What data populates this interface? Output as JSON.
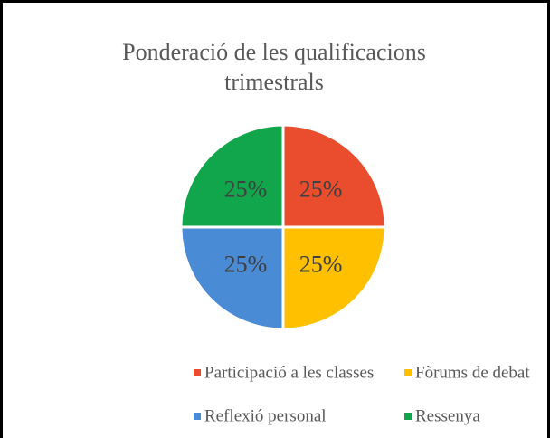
{
  "chart_data": {
    "type": "pie",
    "title": "Ponderació de les qualificacions trimestrals",
    "categories": [
      "Participació a les classes",
      "Fòrums de debat",
      "Reflexió personal",
      "Ressenya"
    ],
    "values": [
      25,
      25,
      25,
      25
    ],
    "value_labels": [
      "25%",
      "25%",
      "25%",
      "25%"
    ],
    "colors": [
      "#ea4d2d",
      "#ffc000",
      "#4a8bd6",
      "#12a64c"
    ],
    "legend": "bottom"
  }
}
